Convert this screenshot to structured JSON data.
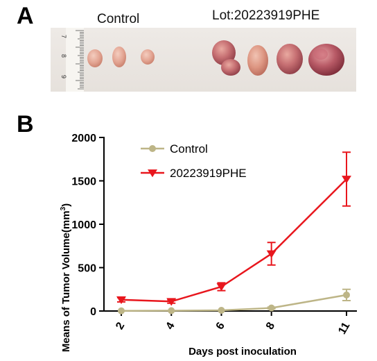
{
  "panels": {
    "a": "A",
    "b": "B"
  },
  "photo": {
    "control_caption": "Control",
    "lot_caption": "Lot:20223919PHE",
    "ruler_numbers": [
      "7",
      "8",
      "9"
    ]
  },
  "chart_data": {
    "type": "line",
    "xlabel": "Days post inoculation",
    "ylabel": "Means of Tumor Volume(mm3)",
    "x": [
      2,
      4,
      6,
      8,
      11
    ],
    "xticks": [
      "2",
      "4",
      "6",
      "8",
      "11"
    ],
    "yticks": [
      "0",
      "500",
      "1000",
      "1500",
      "2000"
    ],
    "ylim": [
      0,
      2000
    ],
    "grid": false,
    "legend": "top-left",
    "series": [
      {
        "name": "Control",
        "color": "#bdb587",
        "marker": "circle",
        "values": [
          2,
          4,
          8,
          35,
          185
        ],
        "errors": [
          0,
          0,
          0,
          10,
          65
        ]
      },
      {
        "name": "20223919PHE",
        "color": "#e8161d",
        "marker": "triangle-down",
        "values": [
          130,
          110,
          280,
          660,
          1520
        ],
        "errors": [
          25,
          20,
          45,
          130,
          310
        ]
      }
    ]
  }
}
